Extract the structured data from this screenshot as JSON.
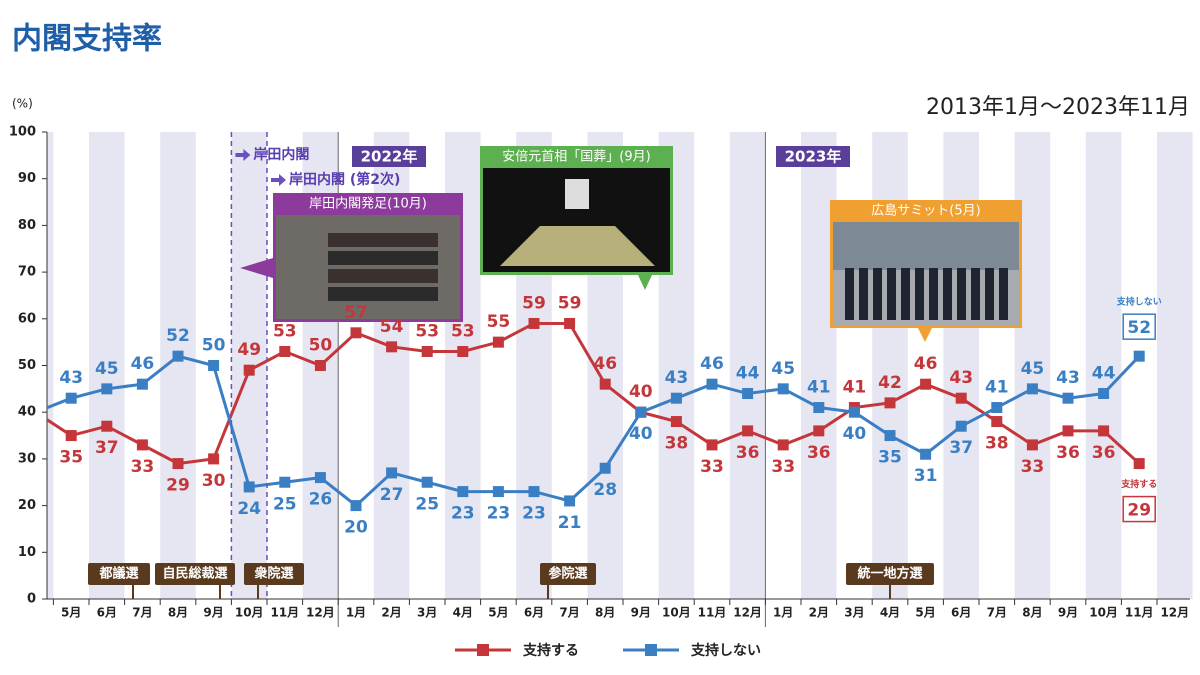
{
  "chart_data": {
    "type": "line",
    "title": "内閣支持率",
    "subtitle": "2013年1月～2023年11月",
    "y_label": "(%)",
    "categories": [
      null,
      "5月",
      "6月",
      "7月",
      "8月",
      "9月",
      "10月",
      "11月",
      "12月",
      "1月",
      "2月",
      "3月",
      "4月",
      "5月",
      "6月",
      "7月",
      "8月",
      "9月",
      "10月",
      "11月",
      "12月",
      "1月",
      "2月",
      "3月",
      "4月",
      "5月",
      "6月",
      "7月",
      "8月",
      "9月",
      "10月",
      "11月",
      "12月"
    ],
    "series": [
      {
        "name": "支持する",
        "color": "#c4363a",
        "values": [
          40,
          35,
          37,
          33,
          29,
          30,
          49,
          53,
          50,
          57,
          54,
          53,
          53,
          55,
          59,
          59,
          46,
          40,
          38,
          33,
          36,
          33,
          36,
          41,
          42,
          46,
          43,
          38,
          33,
          36,
          36,
          29,
          null
        ]
      },
      {
        "name": "支持しない",
        "color": "#3a7fc4",
        "values": [
          40,
          43,
          45,
          46,
          52,
          50,
          24,
          25,
          26,
          20,
          27,
          25,
          23,
          23,
          23,
          21,
          28,
          40,
          43,
          46,
          44,
          45,
          41,
          40,
          35,
          31,
          37,
          41,
          45,
          43,
          44,
          52,
          null
        ]
      }
    ],
    "ylim": [
      0,
      100
    ],
    "yticks": [
      0,
      10,
      20,
      30,
      40,
      50,
      60,
      70,
      80,
      90,
      100
    ],
    "grid": false,
    "legend": "bottom",
    "year_labels": [
      "2022年",
      "2023年"
    ],
    "cabinet_markers": [
      "岸田内閣",
      "岸田内閣 (第2次)"
    ],
    "events": [
      "岸田内閣発足(10月)",
      "安倍元首相「国葬」(9月)",
      "広島サミット(5月)"
    ],
    "elections": [
      "都議選",
      "自民総裁選",
      "衆院選",
      "参院選",
      "統一地方選"
    ]
  }
}
